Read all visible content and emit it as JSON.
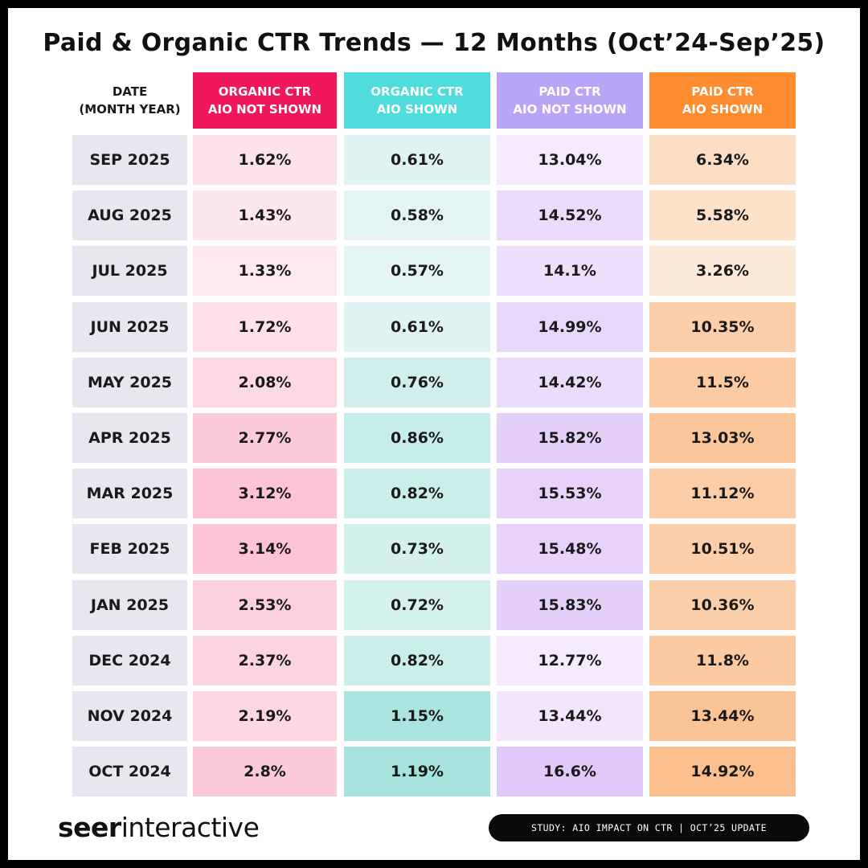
{
  "chart_data": {
    "type": "table",
    "title": "Paid & Organic CTR Trends — 12 Months (Oct’24-Sep’25)",
    "columns": [
      {
        "label": "DATE\n(MONTH YEAR)",
        "color": ""
      },
      {
        "label": "ORGANIC CTR\nAIO NOT SHOWN",
        "color": "#f0185a"
      },
      {
        "label": "ORGANIC CTR\nAIO SHOWN",
        "color": "#4fdcdc"
      },
      {
        "label": "PAID CTR\nAIO NOT SHOWN",
        "color": "#b9a5f5"
      },
      {
        "label": "PAID CTR\nAIO SHOWN",
        "color": "#ff8c2e"
      }
    ],
    "rows": [
      {
        "date": "SEP 2025",
        "values": [
          "1.62%",
          "0.61%",
          "13.04%",
          "6.34%"
        ]
      },
      {
        "date": "AUG 2025",
        "values": [
          "1.43%",
          "0.58%",
          "14.52%",
          "5.58%"
        ]
      },
      {
        "date": "JUL 2025",
        "values": [
          "1.33%",
          "0.57%",
          "14.1%",
          "3.26%"
        ]
      },
      {
        "date": "JUN 2025",
        "values": [
          "1.72%",
          "0.61%",
          "14.99%",
          "10.35%"
        ]
      },
      {
        "date": "MAY 2025",
        "values": [
          "2.08%",
          "0.76%",
          "14.42%",
          "11.5%"
        ]
      },
      {
        "date": "APR 2025",
        "values": [
          "2.77%",
          "0.86%",
          "15.82%",
          "13.03%"
        ]
      },
      {
        "date": "MAR 2025",
        "values": [
          "3.12%",
          "0.82%",
          "15.53%",
          "11.12%"
        ]
      },
      {
        "date": "FEB 2025",
        "values": [
          "3.14%",
          "0.73%",
          "15.48%",
          "10.51%"
        ]
      },
      {
        "date": "JAN 2025",
        "values": [
          "2.53%",
          "0.72%",
          "15.83%",
          "10.36%"
        ]
      },
      {
        "date": "DEC 2024",
        "values": [
          "2.37%",
          "0.82%",
          "12.77%",
          "11.8%"
        ]
      },
      {
        "date": "NOV 2024",
        "values": [
          "2.19%",
          "1.15%",
          "13.44%",
          "13.44%"
        ]
      },
      {
        "date": "OCT 2024",
        "values": [
          "2.8%",
          "1.19%",
          "16.6%",
          "14.92%"
        ]
      }
    ],
    "heat_colors": {
      "organic_not_shown": [
        "#fde8ee",
        "#fcc4d6"
      ],
      "organic_shown": [
        "#e3f5f3",
        "#a6e3dd"
      ],
      "paid_not_shown": [
        "#f5ebfd",
        "#e1c9f9"
      ],
      "paid_shown": [
        "#fde9d8",
        "#fbbf8e"
      ]
    }
  },
  "footer": {
    "logo_bold": "seer",
    "logo_light": "interactive",
    "badge": "STUDY: AIO IMPACT ON CTR | OCT’25 UPDATE"
  }
}
